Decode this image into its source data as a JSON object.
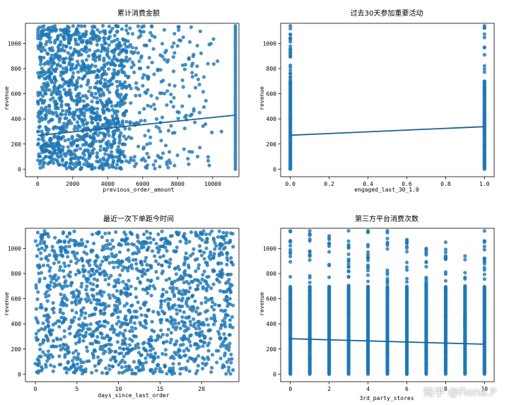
{
  "watermark": "知乎 @Fiona.P",
  "colors": {
    "point": "#1f77b4",
    "line": "#1b6299",
    "band": "#9ec6e6"
  },
  "chart_data": [
    {
      "type": "scatter",
      "title": "累计消费金额",
      "xlabel": "previous_order_amount",
      "ylabel": "revenue",
      "xlim": [
        -700,
        11500
      ],
      "ylim": [
        -60,
        1160
      ],
      "xticks": [
        0,
        2000,
        4000,
        6000,
        8000,
        10000
      ],
      "yticks": [
        0,
        200,
        400,
        600,
        800,
        1000
      ],
      "x_distribution": "decreasing",
      "x_range": [
        0,
        11300
      ],
      "y_range": [
        0,
        1140
      ],
      "edge_column_x": 11300,
      "regression": {
        "x": [
          0,
          11300
        ],
        "y": [
          268,
          430
        ]
      }
    },
    {
      "type": "scatter",
      "title": "过去30天参加重要活动",
      "xlabel": "engaged_last_30_1.0",
      "ylabel": "revenue",
      "xlim": [
        -0.05,
        1.05
      ],
      "ylim": [
        -60,
        1160
      ],
      "xticks": [
        0.0,
        0.2,
        0.4,
        0.6,
        0.8,
        1.0
      ],
      "xticklabels": [
        "0.0",
        "0.2",
        "0.4",
        "0.6",
        "0.8",
        "1.0"
      ],
      "yticks": [
        0,
        200,
        400,
        600,
        800,
        1000
      ],
      "categories_x": [
        0.0,
        1.0
      ],
      "y_max_per_x": [
        1140,
        1140
      ],
      "regression": {
        "x": [
          0,
          1
        ],
        "y": [
          270,
          338
        ]
      }
    },
    {
      "type": "scatter",
      "title": "最近一次下单距今时间",
      "xlabel": "days_since_last_order",
      "ylabel": "revenue",
      "xlim": [
        -1.2,
        24.5
      ],
      "ylim": [
        -60,
        1160
      ],
      "xticks": [
        0,
        5,
        10,
        15,
        20
      ],
      "yticks": [
        0,
        200,
        400,
        600,
        800,
        1000
      ],
      "x_distribution": "uniform",
      "x_range": [
        0,
        23.8
      ],
      "y_range": [
        0,
        1140
      ]
    },
    {
      "type": "scatter",
      "title": "第三方平台消费次数",
      "xlabel": "3rd_party_stores",
      "ylabel": "revenue",
      "xlim": [
        -0.5,
        10.5
      ],
      "ylim": [
        -60,
        1160
      ],
      "xticks": [
        0,
        2,
        4,
        6,
        8,
        10
      ],
      "yticks": [
        0,
        200,
        400,
        600,
        800,
        1000
      ],
      "categories_x": [
        0,
        1,
        2,
        3,
        4,
        5,
        6,
        7,
        8,
        9,
        10
      ],
      "y_max_per_x": [
        1140,
        1140,
        1100,
        1140,
        1140,
        1140,
        1070,
        1000,
        1050,
        940,
        1140
      ],
      "regression": {
        "x": [
          0,
          10
        ],
        "y": [
          282,
          238
        ]
      }
    }
  ]
}
